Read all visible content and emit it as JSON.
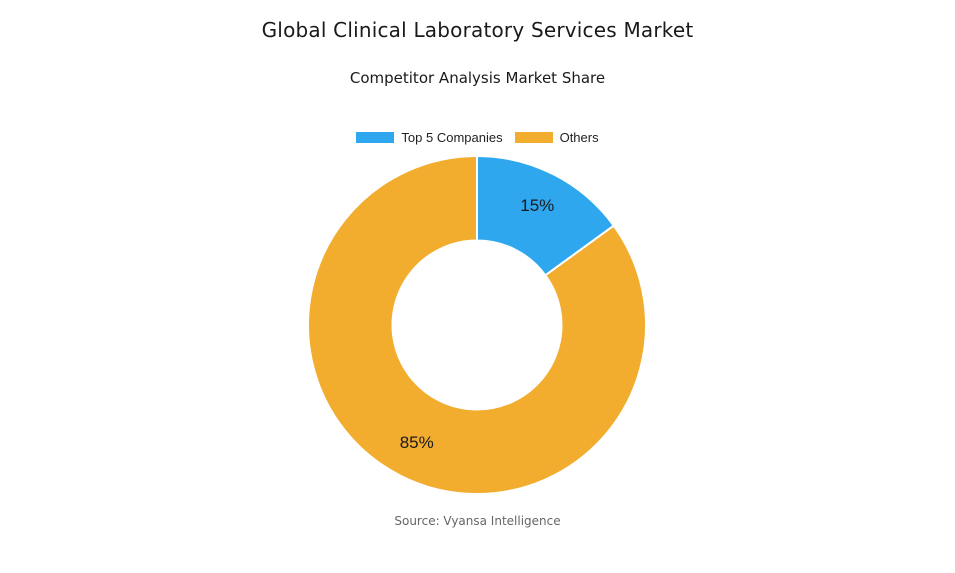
{
  "chart_data": {
    "type": "pie",
    "title": "Global Clinical Laboratory Services Market",
    "subtitle": "Competitor Analysis Market Share",
    "hole": 0.5,
    "legend_position": "top",
    "series": [
      {
        "name": "Top 5 Companies",
        "value": 15,
        "label": "15%",
        "color": "#2ea7ef"
      },
      {
        "name": "Others",
        "value": 85,
        "label": "85%",
        "color": "#f2ac2e"
      }
    ]
  },
  "source": "Source: Vyansa Intelligence"
}
